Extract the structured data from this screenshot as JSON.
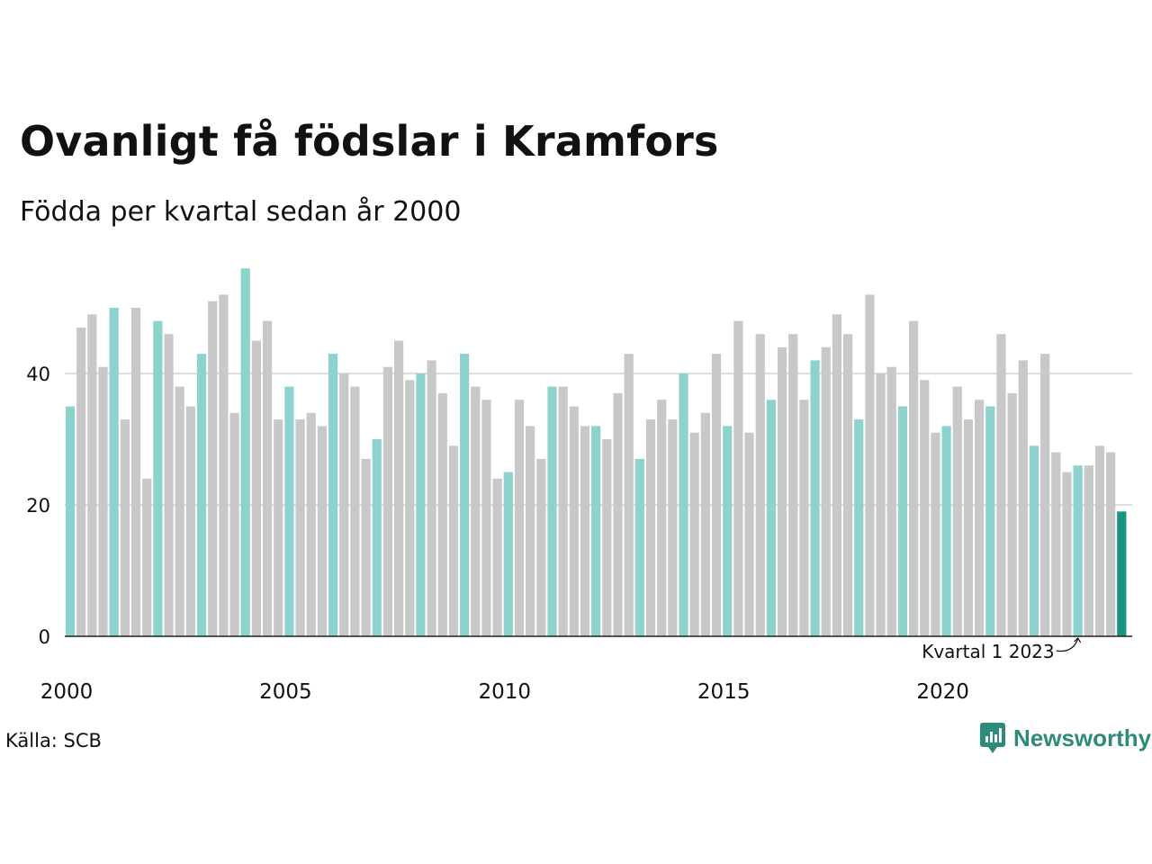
{
  "title": "Ovanligt få födslar i Kramfors",
  "subtitle": "Födda per kvartal sedan år 2000",
  "source": "Källa: SCB",
  "brand": "Newsworthy",
  "colors": {
    "q1": "#8dd3cd",
    "other": "#c8c8c8",
    "latest": "#1a9481",
    "grid": "#dddddd",
    "axis": "#222222"
  },
  "chart_data": {
    "type": "bar",
    "x_tick_labels": [
      "2000",
      "2005",
      "2010",
      "2015",
      "2020"
    ],
    "y_ticks": [
      0,
      20,
      40
    ],
    "ylim": [
      0,
      58
    ],
    "highlight_rule": "Quarter 1 bars highlighted",
    "annotation": "Kvartal 1 2023",
    "start_year": 2000,
    "values": [
      35,
      47,
      49,
      41,
      50,
      33,
      50,
      24,
      48,
      46,
      38,
      35,
      43,
      51,
      52,
      34,
      56,
      45,
      48,
      33,
      38,
      33,
      34,
      32,
      43,
      40,
      38,
      27,
      30,
      41,
      45,
      39,
      40,
      42,
      37,
      29,
      43,
      38,
      36,
      24,
      25,
      36,
      32,
      27,
      38,
      38,
      35,
      32,
      32,
      30,
      37,
      43,
      27,
      33,
      36,
      33,
      40,
      31,
      34,
      43,
      32,
      48,
      31,
      46,
      36,
      44,
      46,
      36,
      42,
      44,
      49,
      46,
      33,
      52,
      40,
      41,
      35,
      48,
      39,
      31,
      32,
      38,
      33,
      36,
      35,
      46,
      37,
      42,
      29,
      43,
      28,
      25,
      26,
      26,
      29,
      28,
      19
    ]
  }
}
